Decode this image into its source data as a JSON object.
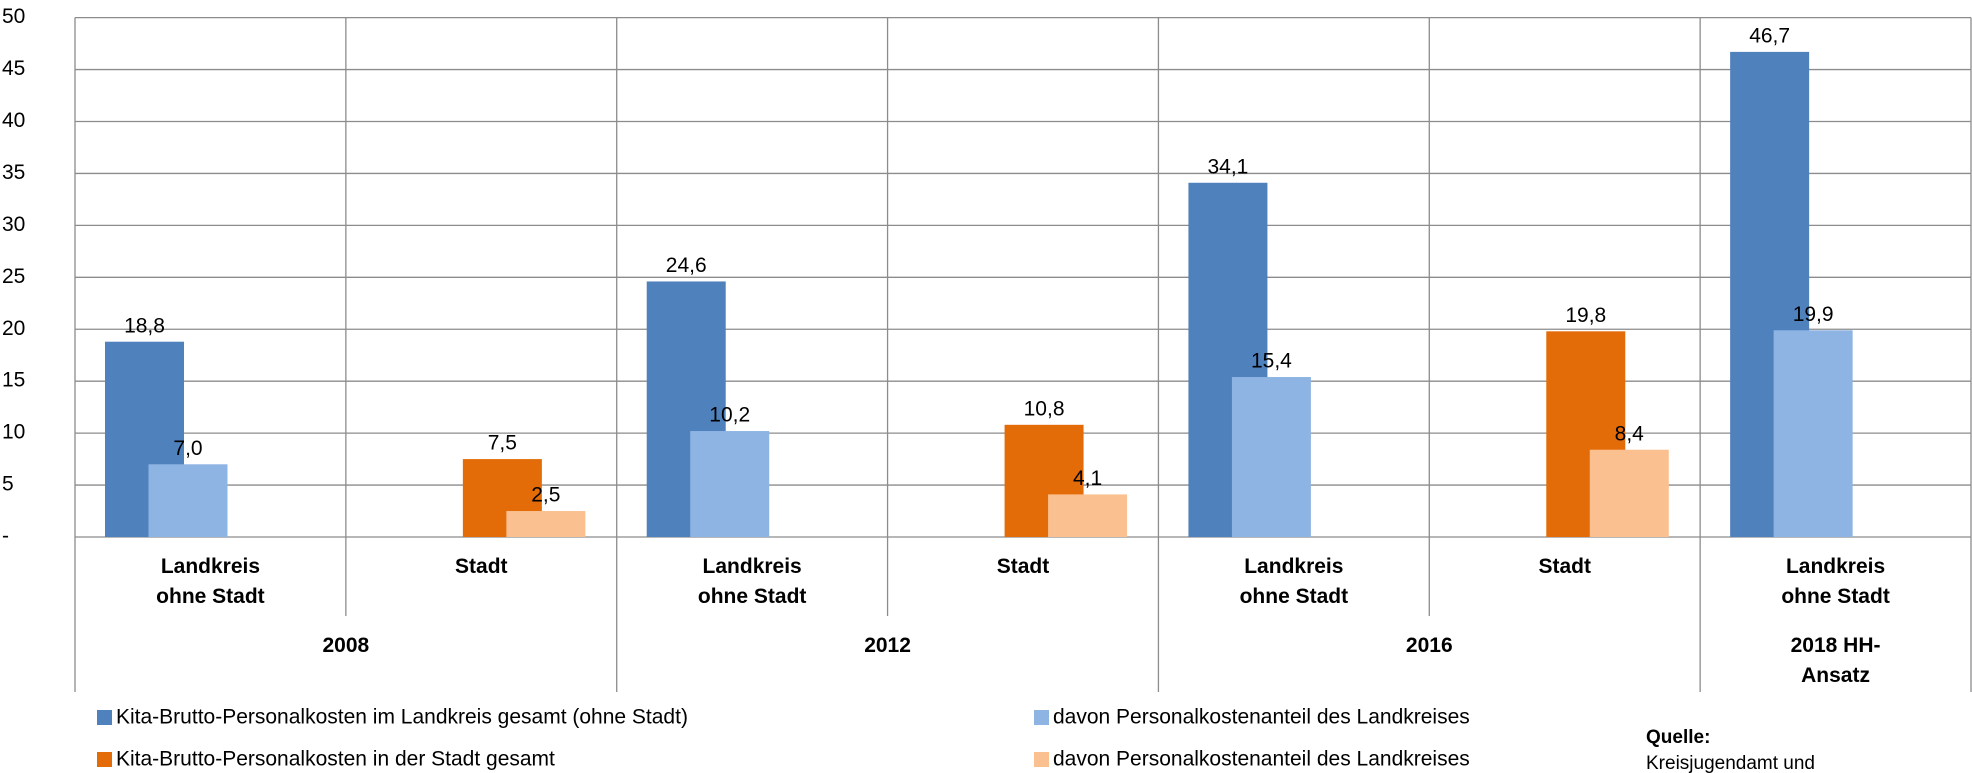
{
  "chart_data": {
    "type": "bar",
    "categories": [
      "Landkreis ohne Stadt",
      "Stadt",
      "Landkreis ohne Stadt",
      "Stadt",
      "Landkreis ohne Stadt",
      "Stadt",
      "Landkreis ohne Stadt"
    ],
    "category_groups": [
      "2008",
      "2008",
      "2012",
      "2012",
      "2016",
      "2016",
      "2018 HH-Ansatz"
    ],
    "series": [
      {
        "name": "Kita-Brutto-Personalkosten im Landkreis gesamt (ohne Stadt)",
        "color": "#4f81bd",
        "values": [
          18.8,
          null,
          24.6,
          null,
          34.1,
          null,
          46.7
        ],
        "value_labels": [
          "18,8",
          null,
          "24,6",
          null,
          "34,1",
          null,
          "46,7"
        ]
      },
      {
        "name": "davon Personalkostenanteil des Landkreises",
        "color": "#8eb4e3",
        "values": [
          7.0,
          null,
          10.2,
          null,
          15.4,
          null,
          19.9
        ],
        "value_labels": [
          "7,0",
          null,
          "10,2",
          null,
          "15,4",
          null,
          "19,9"
        ]
      },
      {
        "name": "Kita-Brutto-Personalkosten in der Stadt gesamt",
        "color": "#e36c09",
        "values": [
          null,
          7.5,
          null,
          10.8,
          null,
          19.8,
          null
        ],
        "value_labels": [
          null,
          "7,5",
          null,
          "10,8",
          null,
          "19,8",
          null
        ]
      },
      {
        "name": "davon Personalkostenanteil des Landkreises",
        "color": "#fac090",
        "values": [
          null,
          2.5,
          null,
          4.1,
          null,
          8.4,
          null
        ],
        "value_labels": [
          null,
          "2,5",
          null,
          "4,1",
          null,
          "8,4",
          null
        ]
      }
    ],
    "ylim": [
      0,
      50
    ],
    "yticks": [
      {
        "value": 0,
        "label": "-"
      },
      5,
      10,
      15,
      20,
      25,
      30,
      35,
      40,
      45,
      50
    ],
    "grid": true,
    "source": {
      "label": "Quelle:",
      "text": "Kreisjugendamt und"
    }
  }
}
